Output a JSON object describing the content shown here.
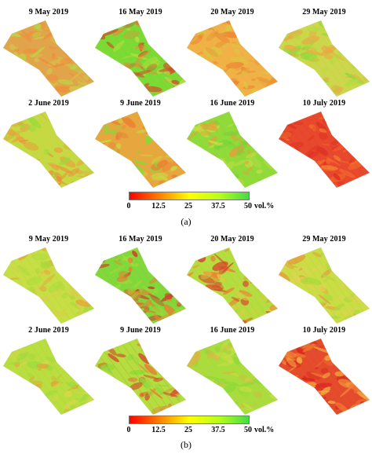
{
  "panels": [
    {
      "label": "(a)",
      "maps": [
        {
          "date": "9 May 2019",
          "palette": [
            "#e1a44a",
            "#f08c3a",
            "#d6c24d",
            "#b7db45"
          ]
        },
        {
          "date": "16 May 2019",
          "palette": [
            "#79db34",
            "#b4e03f",
            "#e58d3e",
            "#d24b2b"
          ]
        },
        {
          "date": "20 May 2019",
          "palette": [
            "#f0b246",
            "#d8cb41",
            "#e89a3b",
            "#f07d33"
          ]
        },
        {
          "date": "29 May 2019",
          "palette": [
            "#cbd84b",
            "#b5dc43",
            "#e9aa44",
            "#88db3c"
          ]
        },
        {
          "date": "2 June 2019",
          "palette": [
            "#c6d943",
            "#e9a43d",
            "#98db3b",
            "#f08a38"
          ]
        },
        {
          "date": "9 June 2019",
          "palette": [
            "#e8a63f",
            "#c8dc42",
            "#85d93a",
            "#f07c34"
          ]
        },
        {
          "date": "16 June 2019",
          "palette": [
            "#8edb3a",
            "#c8de44",
            "#e99d3b",
            "#76d338"
          ]
        },
        {
          "date": "10 July 2019",
          "palette": [
            "#e8482d",
            "#f46a2d",
            "#dc2f24",
            "#f2802d"
          ]
        }
      ]
    },
    {
      "label": "(b)",
      "maps": [
        {
          "date": "9 May 2019",
          "palette": [
            "#c5df44",
            "#a7dc3c",
            "#e9a03b",
            "#d7d14a"
          ]
        },
        {
          "date": "16 May 2019",
          "palette": [
            "#7fd93a",
            "#9fdc3b",
            "#e77f33",
            "#ce3a2a"
          ]
        },
        {
          "date": "20 May 2019",
          "palette": [
            "#b4de40",
            "#d8d045",
            "#ef7f35",
            "#d8442a"
          ]
        },
        {
          "date": "29 May 2019",
          "palette": [
            "#c9de45",
            "#aadc3d",
            "#e89a3a",
            "#dfd350"
          ]
        },
        {
          "date": "2 June 2019",
          "palette": [
            "#b8de3f",
            "#9ddc3d",
            "#e5a43b",
            "#d3d94a"
          ]
        },
        {
          "date": "9 June 2019",
          "palette": [
            "#b4dd40",
            "#e87f34",
            "#d93528",
            "#8ddb38"
          ]
        },
        {
          "date": "16 June 2019",
          "palette": [
            "#a9dd3d",
            "#c7df44",
            "#e1b144",
            "#8ada39"
          ]
        },
        {
          "date": "10 July 2019",
          "palette": [
            "#e34b2c",
            "#d9241f",
            "#f17a30",
            "#f6b742"
          ]
        }
      ]
    }
  ],
  "colorbar": {
    "ticks": [
      "0",
      "12.5",
      "25",
      "37.5",
      "50"
    ],
    "unit": "vol.%",
    "colors": [
      "#ff0000",
      "#ff7f00",
      "#ffff00",
      "#b8ff1a",
      "#45dc45"
    ]
  }
}
